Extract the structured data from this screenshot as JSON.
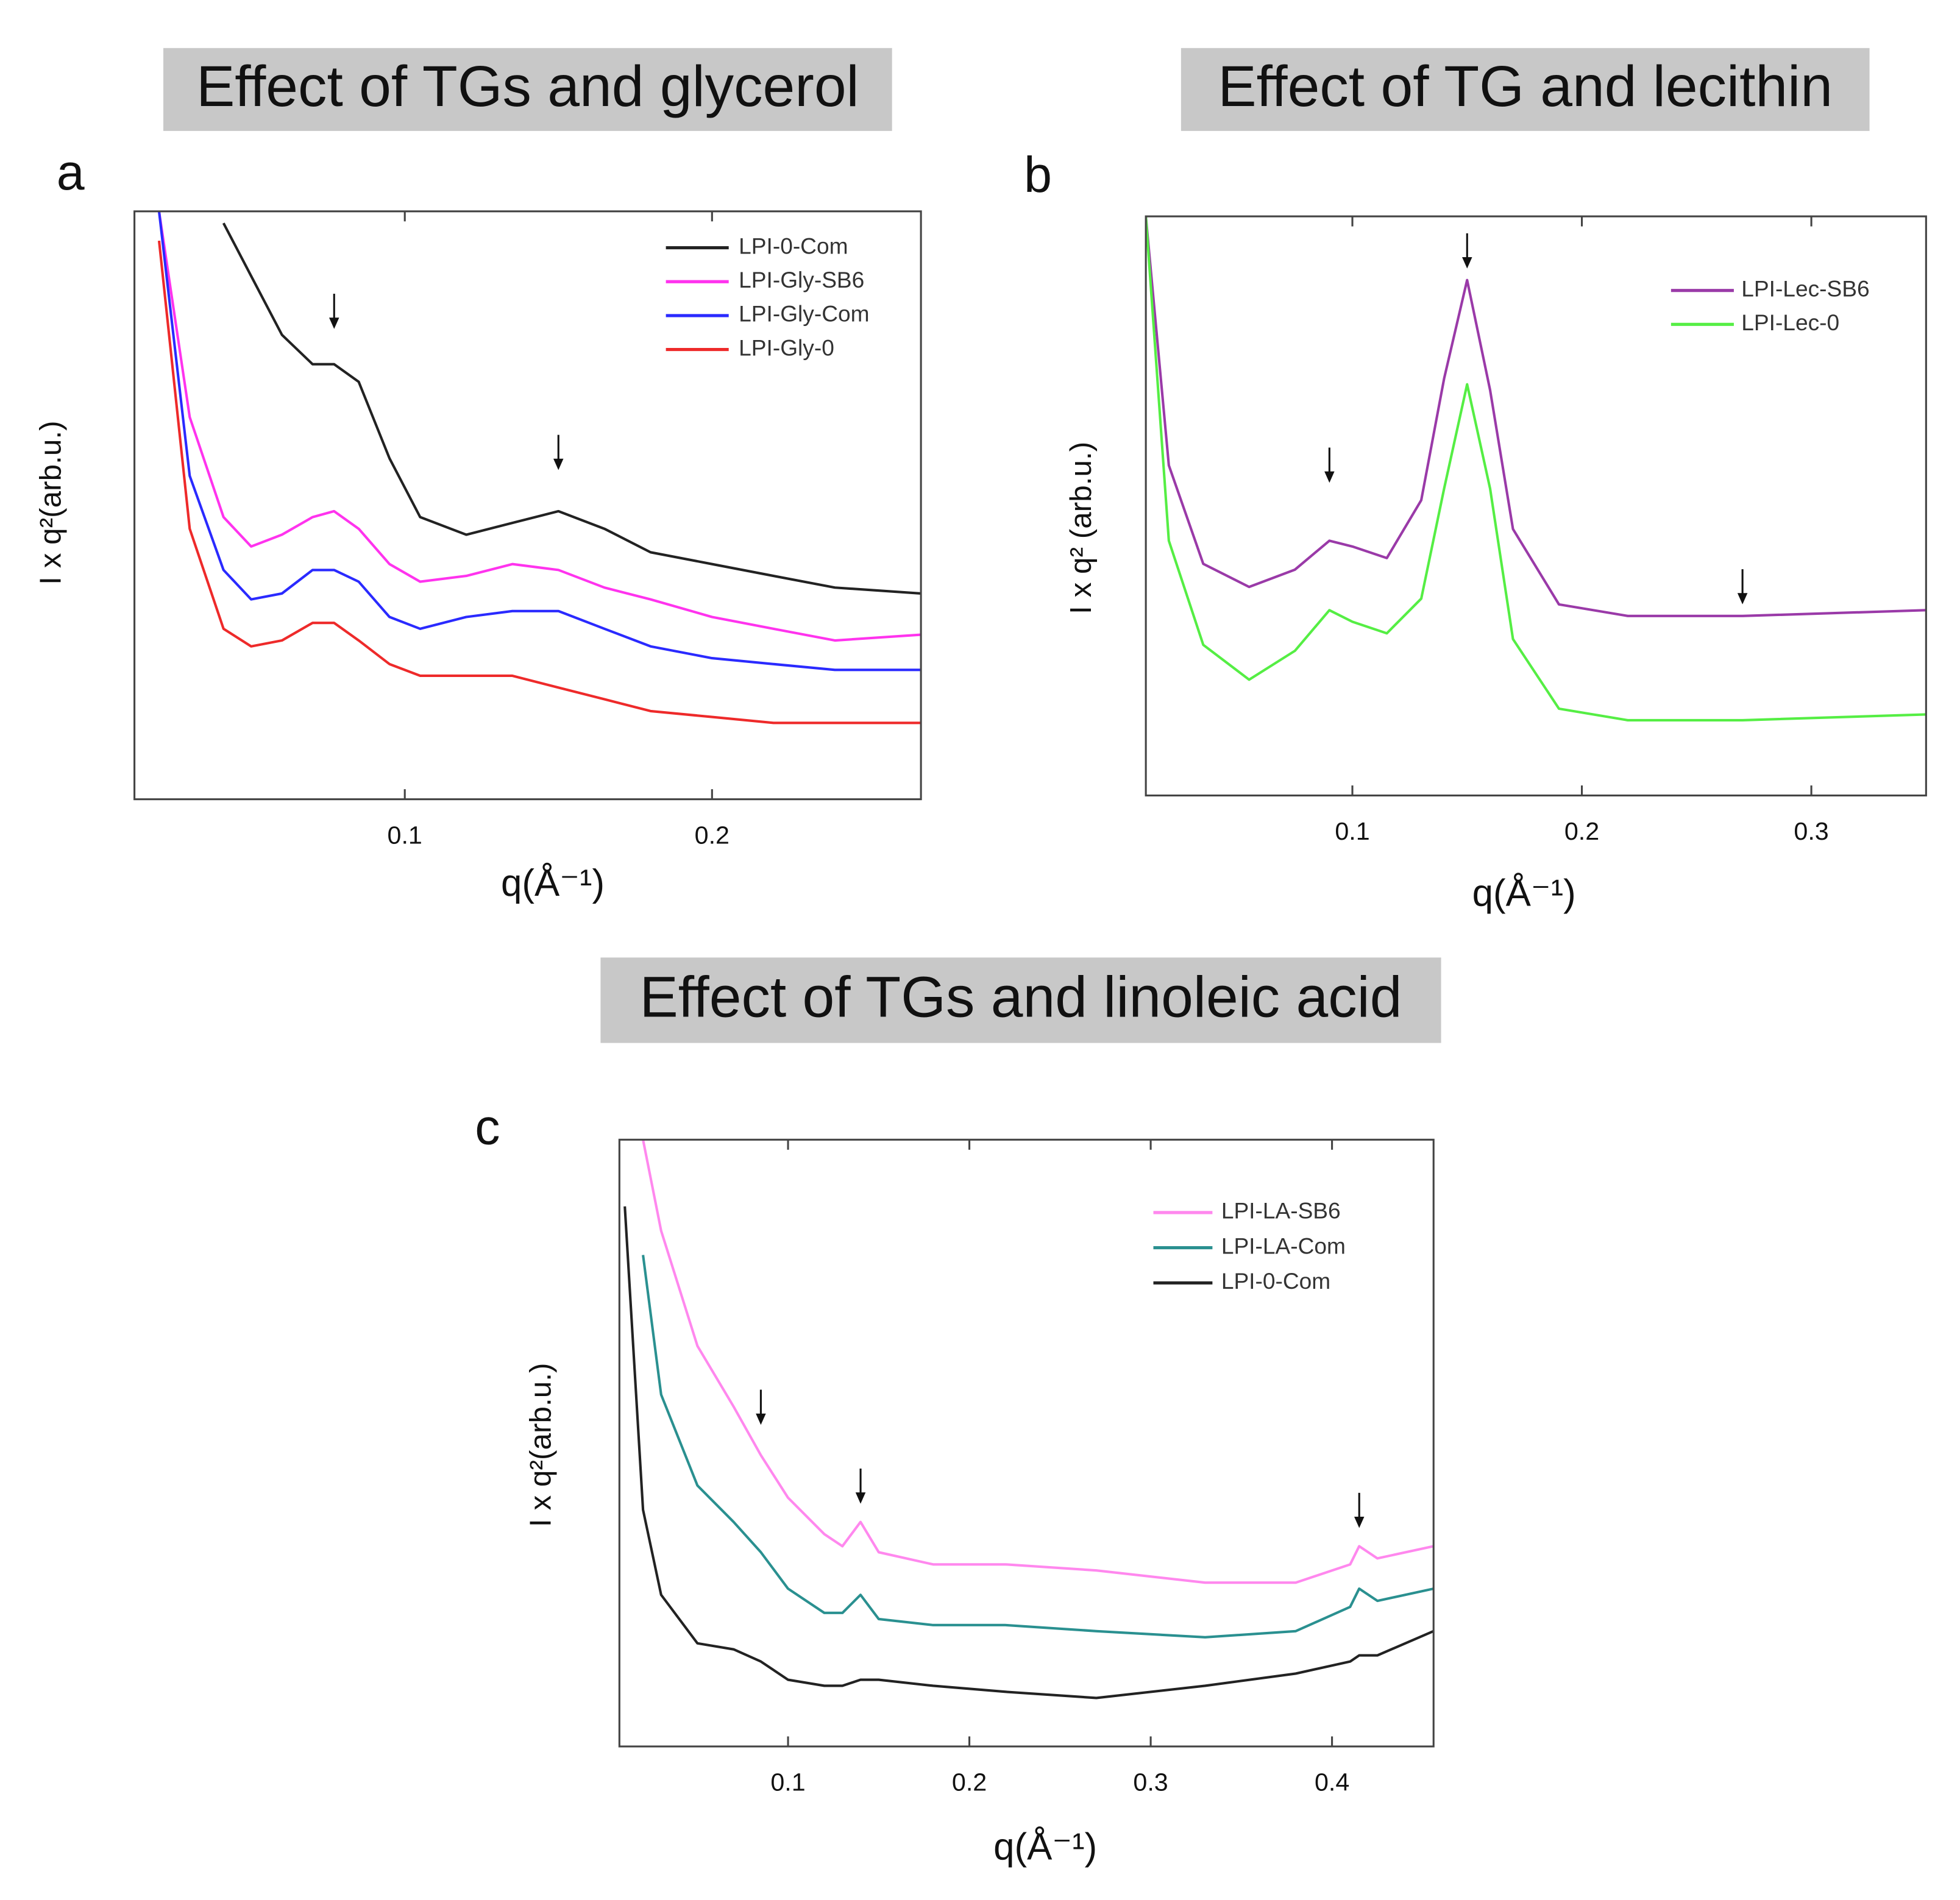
{
  "chart_data": [
    {
      "type": "line",
      "panel": "a",
      "header": "Effect of TGs and glycerol",
      "xlabel": "q(Å⁻¹)",
      "ylabel": "I x q²(arb.u.)",
      "xlim": [
        0.012,
        0.268
      ],
      "xticks": [
        0.1,
        0.2
      ],
      "ylim": [
        0,
        100
      ],
      "legend": "upper right",
      "x": [
        0.02,
        0.03,
        0.041,
        0.05,
        0.06,
        0.07,
        0.077,
        0.085,
        0.095,
        0.105,
        0.12,
        0.135,
        0.15,
        0.165,
        0.18,
        0.2,
        0.22,
        0.24,
        0.268
      ],
      "series": [
        {
          "name": "LPI-0-Com",
          "color": "#222222",
          "values": [
            null,
            null,
            98,
            89,
            79,
            74,
            74,
            71,
            58,
            48,
            45,
            47,
            49,
            46,
            42,
            40,
            38,
            36,
            35
          ]
        },
        {
          "name": "LPI-Gly-SB6",
          "color": "#ff33ee",
          "values": [
            100,
            65,
            48,
            43,
            45,
            48,
            49,
            46,
            40,
            37,
            38,
            40,
            39,
            36,
            34,
            31,
            29,
            27,
            28
          ]
        },
        {
          "name": "LPI-Gly-Com",
          "color": "#2a2aff",
          "values": [
            100,
            55,
            39,
            34,
            35,
            39,
            39,
            37,
            31,
            29,
            31,
            32,
            32,
            29,
            26,
            24,
            23,
            22,
            22
          ]
        },
        {
          "name": "LPI-Gly-0",
          "color": "#ee2a2a",
          "values": [
            95,
            46,
            29,
            26,
            27,
            30,
            30,
            27,
            23,
            21,
            21,
            21,
            19,
            17,
            15,
            14,
            13,
            13,
            13
          ]
        }
      ],
      "arrows": [
        {
          "x": 0.077,
          "y": 80
        },
        {
          "x": 0.15,
          "y": 56
        }
      ]
    },
    {
      "type": "line",
      "panel": "b",
      "header": "Effect of TG and lecithin",
      "xlabel": "q(Å⁻¹)",
      "ylabel": "I x q² (arb.u.)",
      "xlim": [
        0.01,
        0.35
      ],
      "xticks": [
        0.1,
        0.2,
        0.3
      ],
      "ylim": [
        0,
        100
      ],
      "legend": "upper right",
      "x": [
        0.01,
        0.02,
        0.035,
        0.055,
        0.075,
        0.09,
        0.1,
        0.115,
        0.13,
        0.14,
        0.15,
        0.16,
        0.17,
        0.19,
        0.22,
        0.27,
        0.35
      ],
      "series": [
        {
          "name": "LPI-Lec-SB6",
          "color": "#9a3aa8",
          "values": [
            100,
            57,
            40,
            36,
            39,
            44,
            43,
            41,
            51,
            72,
            89,
            70,
            46,
            33,
            31,
            31,
            32
          ]
        },
        {
          "name": "LPI-Lec-0",
          "color": "#55ee44",
          "values": [
            100,
            44,
            26,
            20,
            25,
            32,
            30,
            28,
            34,
            53,
            71,
            53,
            27,
            15,
            13,
            13,
            14
          ]
        }
      ],
      "arrows": [
        {
          "x": 0.09,
          "y": 54
        },
        {
          "x": 0.15,
          "y": 91
        },
        {
          "x": 0.27,
          "y": 33
        }
      ]
    },
    {
      "type": "line",
      "panel": "c",
      "header": "Effect of TGs and linoleic acid",
      "xlabel": "q(Å⁻¹)",
      "ylabel": "I x q²(arb.u.)",
      "xlim": [
        0.007,
        0.456
      ],
      "xticks": [
        0.1,
        0.2,
        0.3,
        0.4
      ],
      "ylim": [
        0,
        100
      ],
      "legend": "upper right",
      "x": [
        0.01,
        0.02,
        0.03,
        0.05,
        0.07,
        0.085,
        0.1,
        0.12,
        0.13,
        0.14,
        0.15,
        0.18,
        0.22,
        0.27,
        0.33,
        0.38,
        0.41,
        0.415,
        0.425,
        0.456
      ],
      "series": [
        {
          "name": "LPI-LA-SB6",
          "color": "#ff88ee",
          "values": [
            null,
            100,
            85,
            66,
            56,
            48,
            41,
            35,
            33,
            37,
            32,
            30,
            30,
            29,
            27,
            27,
            30,
            33,
            31,
            33
          ]
        },
        {
          "name": "LPI-LA-Com",
          "color": "#2a9090",
          "values": [
            null,
            81,
            58,
            43,
            37,
            32,
            26,
            22,
            22,
            25,
            21,
            20,
            20,
            19,
            18,
            19,
            23,
            26,
            24,
            26
          ]
        },
        {
          "name": "LPI-0-Com",
          "color": "#222222",
          "values": [
            89,
            39,
            25,
            17,
            16,
            14,
            11,
            10,
            10,
            11,
            11,
            10,
            9,
            8,
            10,
            12,
            14,
            15,
            15,
            19
          ]
        }
      ],
      "arrows": [
        {
          "x": 0.085,
          "y": 53
        },
        {
          "x": 0.14,
          "y": 40
        },
        {
          "x": 0.415,
          "y": 36
        }
      ]
    }
  ]
}
